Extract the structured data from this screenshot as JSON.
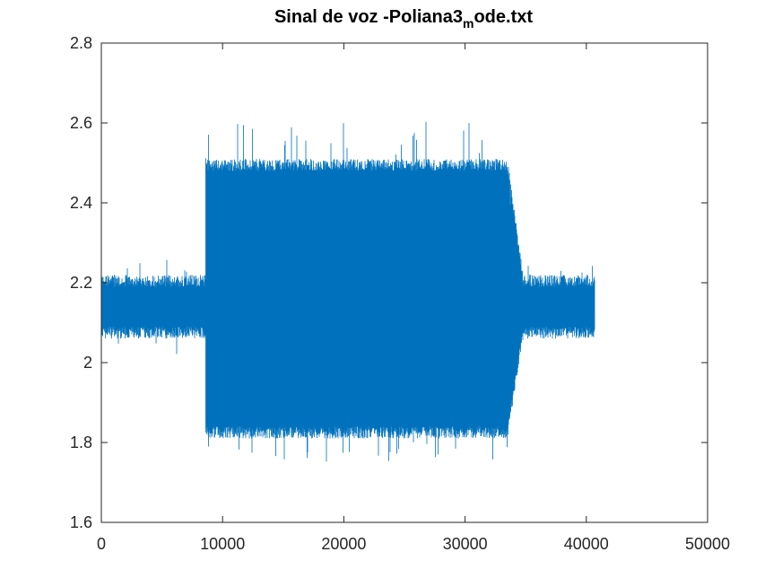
{
  "chart_data": {
    "type": "line",
    "title": {
      "prefix": "Sinal de voz -Poliana3",
      "subscript": "m",
      "suffix": "ode.txt"
    },
    "xlabel": "",
    "ylabel": "",
    "xlim": [
      0,
      50000
    ],
    "ylim": [
      1.6,
      2.8
    ],
    "xticks": [
      "0",
      "10000",
      "20000",
      "30000",
      "40000",
      "50000"
    ],
    "yticks": [
      "1.6",
      "1.8",
      "2",
      "2.2",
      "2.4",
      "2.6",
      "2.8"
    ],
    "grid": false,
    "legend": "none",
    "series_color": "#0072BD",
    "samples_total": 40700,
    "segments": [
      {
        "x_start": 0,
        "x_end": 8600,
        "typical_min": 2.09,
        "typical_max": 2.19,
        "extreme_min": 2.02,
        "extreme_max": 2.26
      },
      {
        "x_start": 8600,
        "x_end": 33500,
        "typical_min": 1.84,
        "typical_max": 2.48,
        "extreme_min": 1.75,
        "extreme_max": 2.63
      },
      {
        "x_start": 33500,
        "x_end": 34800,
        "typical_min": 2.0,
        "typical_max": 2.3,
        "extreme_min": 1.95,
        "extreme_max": 2.35
      },
      {
        "x_start": 34800,
        "x_end": 40700,
        "typical_min": 2.09,
        "typical_max": 2.19,
        "extreme_min": 2.06,
        "extreme_max": 2.25
      }
    ]
  }
}
